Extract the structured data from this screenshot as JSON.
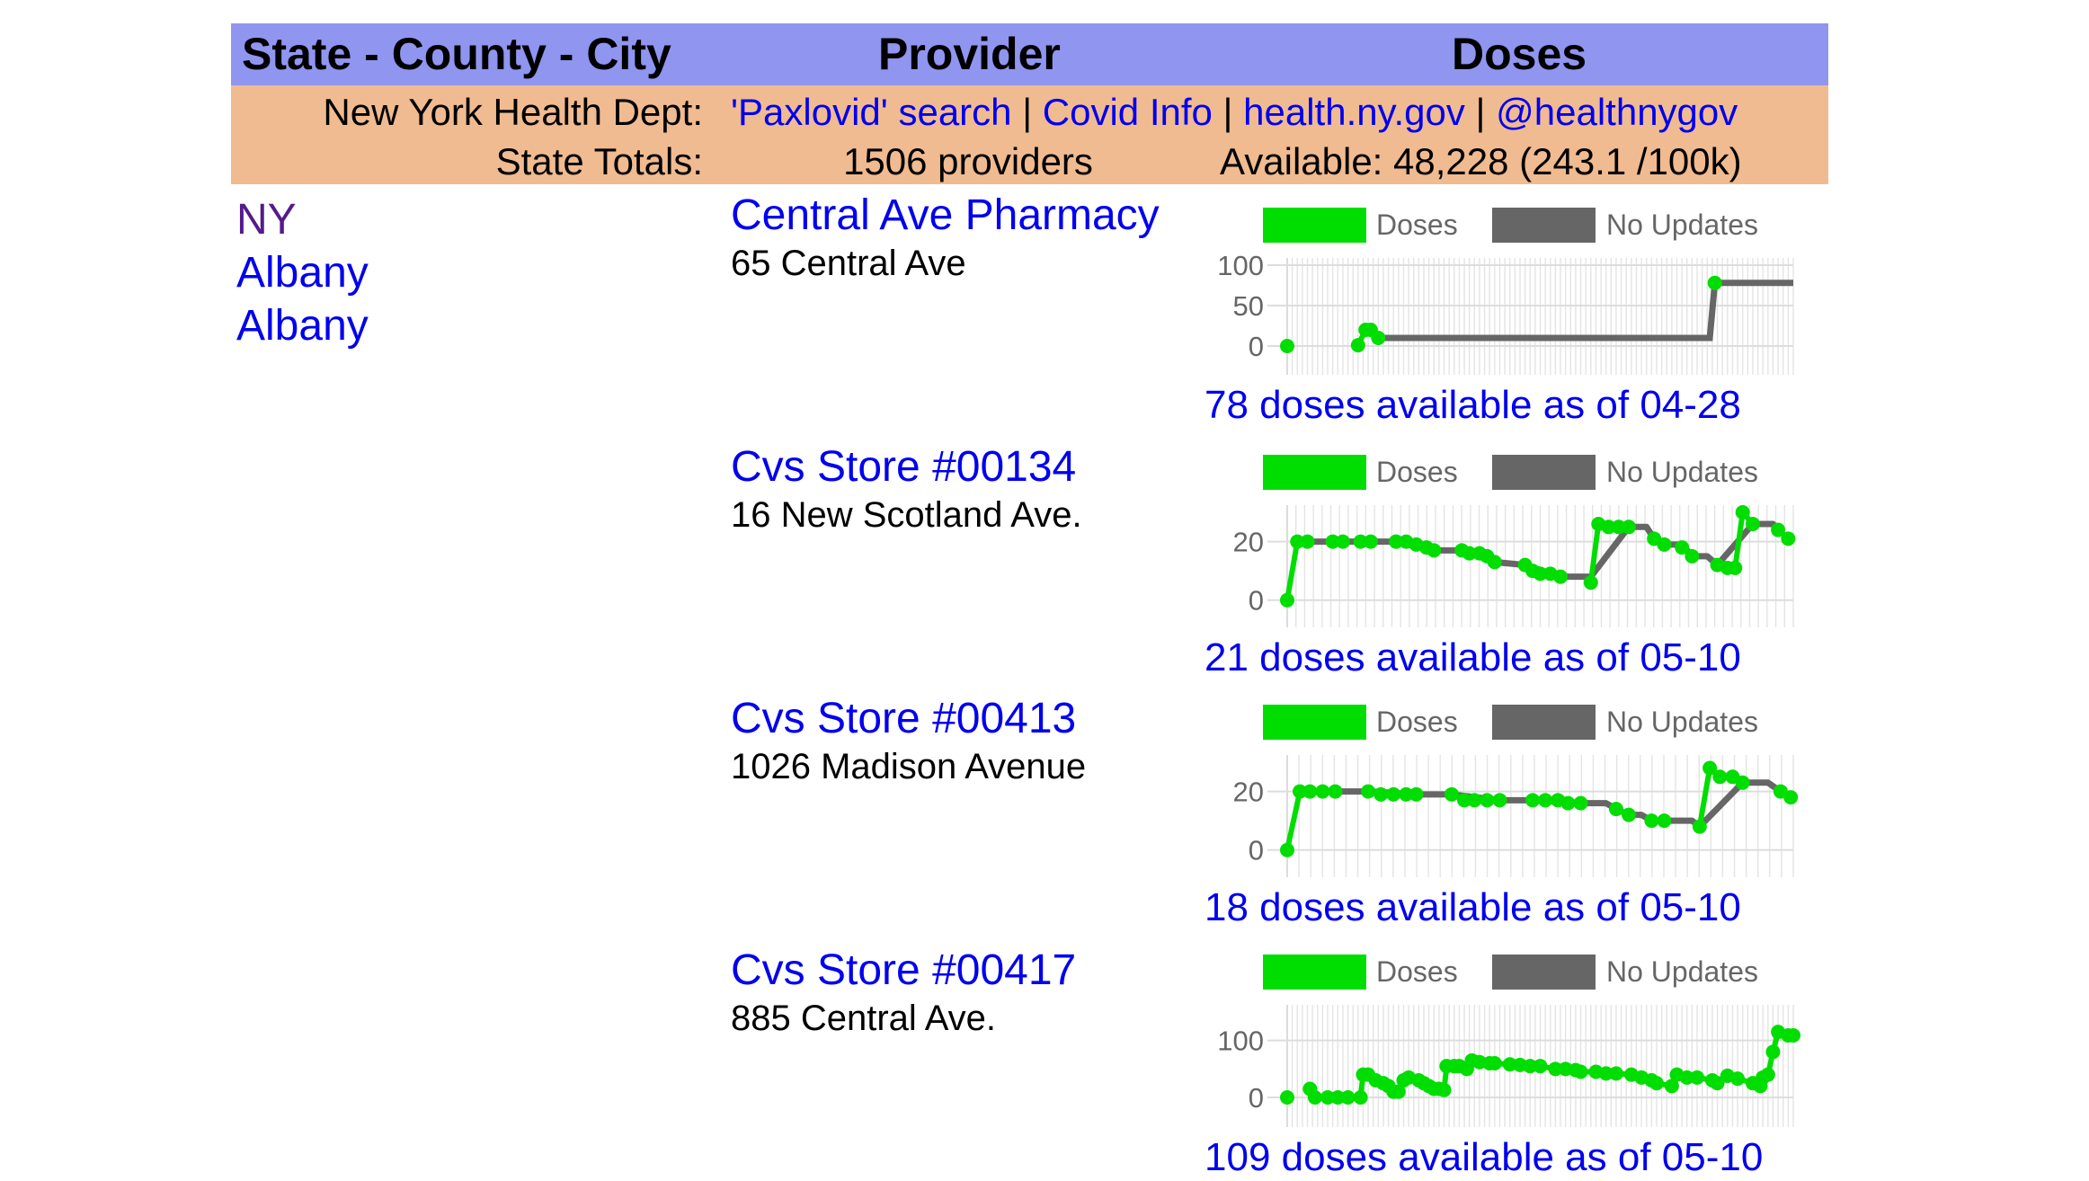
{
  "header": {
    "col_location": "State - County - City",
    "col_provider": "Provider",
    "col_doses": "Doses"
  },
  "info": {
    "dept_label": "New York Health Dept:",
    "links": [
      {
        "label": "'Paxlovid' search"
      },
      {
        "label": "Covid Info"
      },
      {
        "label": "health.ny.gov"
      },
      {
        "label": "@healthnygov"
      }
    ],
    "separator": " | ",
    "totals_label": "State Totals:",
    "providers_total": "1506 providers",
    "available_total": "Available: 48,228 (243.1 /100k)"
  },
  "location": {
    "state": "NY",
    "county": "Albany",
    "city": "Albany"
  },
  "colors": {
    "header_bg": "#9095F0",
    "info_bg": "#F0BB90",
    "link": "#0000EE",
    "visited_link": "#551A8B",
    "doses_series": "#00DD00",
    "no_updates_series": "#666666",
    "grid": "#DDDDDD"
  },
  "legend": {
    "doses_label": "Doses",
    "no_updates_label": "No Updates"
  },
  "providers": [
    {
      "name": "Central Ave Pharmacy",
      "address": "65 Central Ave",
      "caption": "78 doses available as of 04-28"
    },
    {
      "name": "Cvs Store #00134",
      "address": "16 New Scotland Ave.",
      "caption": "21 doses available as of 05-10"
    },
    {
      "name": "Cvs Store #00413",
      "address": "1026 Madison Avenue",
      "caption": "18 doses available as of 05-10"
    },
    {
      "name": "Cvs Store #00417",
      "address": "885 Central Ave.",
      "caption": "109 doses available as of 05-10"
    }
  ],
  "chart_data": [
    {
      "type": "line",
      "title": "Central Ave Pharmacy",
      "legend": [
        "Doses",
        "No Updates"
      ],
      "yticks": [
        0,
        50,
        100
      ],
      "ylim": [
        -20,
        100
      ],
      "grid": true,
      "vlines": 100,
      "series": [
        {
          "name": "Doses",
          "x": [
            0,
            0.14,
            0.155,
            0.165,
            0.18,
            0.84
          ],
          "values": [
            0,
            1,
            20,
            20,
            10,
            78
          ]
        },
        {
          "name": "No Updates",
          "x": [
            0.18,
            0.835,
            0.845,
            1.0
          ],
          "values": [
            10,
            10,
            78,
            78
          ]
        }
      ],
      "points": [
        [
          0,
          0
        ],
        [
          0.14,
          1
        ],
        [
          0.155,
          20
        ],
        [
          0.165,
          20
        ],
        [
          0.18,
          10
        ],
        [
          0.845,
          78
        ]
      ],
      "doses_segments": [
        [
          [
            0.14,
            1
          ],
          [
            0.155,
            20
          ],
          [
            0.165,
            20
          ],
          [
            0.18,
            10
          ]
        ]
      ]
    },
    {
      "type": "line",
      "title": "Cvs Store #00134",
      "legend": [
        "Doses",
        "No Updates"
      ],
      "yticks": [
        0,
        20
      ],
      "ylim": [
        -5,
        30
      ],
      "grid": true,
      "vlines": 58,
      "points": [
        [
          0,
          0
        ],
        [
          0.02,
          20
        ],
        [
          0.04,
          20
        ],
        [
          0.09,
          20
        ],
        [
          0.11,
          20
        ],
        [
          0.145,
          20
        ],
        [
          0.165,
          20
        ],
        [
          0.215,
          20
        ],
        [
          0.235,
          20
        ],
        [
          0.255,
          19
        ],
        [
          0.275,
          18
        ],
        [
          0.29,
          17
        ],
        [
          0.345,
          17
        ],
        [
          0.36,
          16
        ],
        [
          0.38,
          16
        ],
        [
          0.395,
          15
        ],
        [
          0.41,
          13
        ],
        [
          0.47,
          12
        ],
        [
          0.485,
          10
        ],
        [
          0.5,
          9
        ],
        [
          0.52,
          9
        ],
        [
          0.54,
          8
        ],
        [
          0.6,
          6
        ],
        [
          0.615,
          26
        ],
        [
          0.635,
          25
        ],
        [
          0.655,
          25
        ],
        [
          0.675,
          25
        ],
        [
          0.725,
          21
        ],
        [
          0.745,
          19
        ],
        [
          0.78,
          18
        ],
        [
          0.8,
          15
        ],
        [
          0.85,
          12
        ],
        [
          0.87,
          11
        ],
        [
          0.885,
          11
        ],
        [
          0.9,
          30
        ],
        [
          0.92,
          26
        ],
        [
          0.97,
          24
        ],
        [
          0.99,
          21
        ]
      ],
      "doses_segments": [
        [
          [
            0,
            0
          ],
          [
            0.02,
            20
          ],
          [
            0.04,
            20
          ]
        ],
        [
          [
            0.09,
            20
          ],
          [
            0.11,
            20
          ]
        ],
        [
          [
            0.145,
            20
          ],
          [
            0.165,
            20
          ]
        ],
        [
          [
            0.215,
            20
          ],
          [
            0.235,
            20
          ],
          [
            0.255,
            19
          ],
          [
            0.275,
            18
          ],
          [
            0.29,
            17
          ]
        ],
        [
          [
            0.345,
            17
          ],
          [
            0.36,
            16
          ],
          [
            0.38,
            16
          ],
          [
            0.395,
            15
          ],
          [
            0.41,
            13
          ]
        ],
        [
          [
            0.47,
            12
          ],
          [
            0.485,
            10
          ],
          [
            0.5,
            9
          ],
          [
            0.52,
            9
          ],
          [
            0.54,
            8
          ]
        ],
        [
          [
            0.6,
            6
          ],
          [
            0.615,
            26
          ],
          [
            0.635,
            25
          ],
          [
            0.655,
            25
          ],
          [
            0.675,
            25
          ]
        ],
        [
          [
            0.725,
            21
          ],
          [
            0.745,
            19
          ]
        ],
        [
          [
            0.78,
            18
          ],
          [
            0.8,
            15
          ]
        ],
        [
          [
            0.85,
            12
          ],
          [
            0.87,
            11
          ],
          [
            0.885,
            11
          ],
          [
            0.9,
            30
          ],
          [
            0.92,
            26
          ]
        ],
        [
          [
            0.97,
            24
          ],
          [
            0.99,
            21
          ]
        ]
      ],
      "gray_path": [
        [
          0.04,
          20
        ],
        [
          0.09,
          20
        ],
        [
          0.11,
          20
        ],
        [
          0.145,
          20
        ],
        [
          0.165,
          20
        ],
        [
          0.215,
          20
        ],
        [
          0.29,
          17
        ],
        [
          0.345,
          17
        ],
        [
          0.41,
          13
        ],
        [
          0.47,
          12
        ],
        [
          0.54,
          8
        ],
        [
          0.6,
          8
        ],
        [
          0.675,
          25
        ],
        [
          0.71,
          25
        ],
        [
          0.725,
          21
        ],
        [
          0.745,
          19
        ],
        [
          0.78,
          19
        ],
        [
          0.8,
          15
        ],
        [
          0.83,
          15
        ],
        [
          0.85,
          12
        ],
        [
          0.92,
          26
        ],
        [
          0.96,
          26
        ],
        [
          0.97,
          24
        ]
      ]
    },
    {
      "type": "line",
      "title": "Cvs Store #00413",
      "legend": [
        "Doses",
        "No Updates"
      ],
      "yticks": [
        0,
        20
      ],
      "ylim": [
        -5,
        30
      ],
      "grid": true,
      "vlines": 43,
      "points": [
        [
          0,
          0
        ],
        [
          0.025,
          20
        ],
        [
          0.045,
          20
        ],
        [
          0.07,
          20
        ],
        [
          0.095,
          20
        ],
        [
          0.16,
          20
        ],
        [
          0.185,
          19
        ],
        [
          0.21,
          19
        ],
        [
          0.235,
          19
        ],
        [
          0.255,
          19
        ],
        [
          0.325,
          19
        ],
        [
          0.35,
          17
        ],
        [
          0.37,
          17
        ],
        [
          0.395,
          17
        ],
        [
          0.42,
          17
        ],
        [
          0.485,
          17
        ],
        [
          0.51,
          17
        ],
        [
          0.535,
          17
        ],
        [
          0.555,
          16
        ],
        [
          0.58,
          16
        ],
        [
          0.65,
          14
        ],
        [
          0.675,
          12
        ],
        [
          0.72,
          10
        ],
        [
          0.745,
          10
        ],
        [
          0.815,
          8
        ],
        [
          0.835,
          28
        ],
        [
          0.855,
          25
        ],
        [
          0.88,
          25
        ],
        [
          0.9,
          23
        ],
        [
          0.975,
          20
        ],
        [
          0.995,
          18
        ]
      ],
      "doses_segments": [
        [
          [
            0,
            0
          ],
          [
            0.025,
            20
          ],
          [
            0.045,
            20
          ],
          [
            0.07,
            20
          ],
          [
            0.095,
            20
          ]
        ],
        [
          [
            0.16,
            20
          ],
          [
            0.185,
            19
          ],
          [
            0.21,
            19
          ],
          [
            0.235,
            19
          ],
          [
            0.255,
            19
          ]
        ],
        [
          [
            0.325,
            19
          ],
          [
            0.35,
            17
          ],
          [
            0.37,
            17
          ],
          [
            0.395,
            17
          ],
          [
            0.42,
            17
          ]
        ],
        [
          [
            0.485,
            17
          ],
          [
            0.51,
            17
          ],
          [
            0.535,
            17
          ],
          [
            0.555,
            16
          ],
          [
            0.58,
            16
          ]
        ],
        [
          [
            0.65,
            14
          ],
          [
            0.675,
            12
          ]
        ],
        [
          [
            0.72,
            10
          ],
          [
            0.745,
            10
          ]
        ],
        [
          [
            0.815,
            8
          ],
          [
            0.835,
            28
          ],
          [
            0.855,
            25
          ],
          [
            0.88,
            25
          ],
          [
            0.9,
            23
          ]
        ],
        [
          [
            0.975,
            20
          ],
          [
            0.995,
            18
          ]
        ]
      ],
      "gray_path": [
        [
          0.095,
          20
        ],
        [
          0.16,
          20
        ],
        [
          0.255,
          19
        ],
        [
          0.325,
          19
        ],
        [
          0.42,
          17
        ],
        [
          0.485,
          17
        ],
        [
          0.58,
          16
        ],
        [
          0.63,
          16
        ],
        [
          0.65,
          14
        ],
        [
          0.675,
          12
        ],
        [
          0.7,
          12
        ],
        [
          0.72,
          10
        ],
        [
          0.745,
          10
        ],
        [
          0.8,
          10
        ],
        [
          0.815,
          8
        ],
        [
          0.9,
          23
        ],
        [
          0.95,
          23
        ],
        [
          0.975,
          20
        ]
      ]
    },
    {
      "type": "line",
      "title": "Cvs Store #00417",
      "legend": [
        "Doses",
        "No Updates"
      ],
      "yticks": [
        0,
        100
      ],
      "ylim": [
        -30,
        150
      ],
      "grid": true,
      "vlines": 100,
      "points": [
        [
          0,
          0
        ],
        [
          0.045,
          15
        ],
        [
          0.055,
          0
        ],
        [
          0.08,
          0
        ],
        [
          0.1,
          0
        ],
        [
          0.12,
          0
        ],
        [
          0.145,
          0
        ],
        [
          0.15,
          40
        ],
        [
          0.16,
          40
        ],
        [
          0.175,
          30
        ],
        [
          0.19,
          25
        ],
        [
          0.2,
          20
        ],
        [
          0.21,
          10
        ],
        [
          0.22,
          10
        ],
        [
          0.23,
          30
        ],
        [
          0.24,
          35
        ],
        [
          0.26,
          30
        ],
        [
          0.27,
          25
        ],
        [
          0.28,
          20
        ],
        [
          0.29,
          15
        ],
        [
          0.3,
          15
        ],
        [
          0.31,
          13
        ],
        [
          0.315,
          55
        ],
        [
          0.33,
          55
        ],
        [
          0.34,
          55
        ],
        [
          0.355,
          50
        ],
        [
          0.365,
          65
        ],
        [
          0.38,
          62
        ],
        [
          0.4,
          60
        ],
        [
          0.41,
          60
        ],
        [
          0.44,
          58
        ],
        [
          0.46,
          57
        ],
        [
          0.48,
          55
        ],
        [
          0.5,
          55
        ],
        [
          0.53,
          50
        ],
        [
          0.55,
          50
        ],
        [
          0.57,
          48
        ],
        [
          0.58,
          45
        ],
        [
          0.61,
          45
        ],
        [
          0.63,
          42
        ],
        [
          0.65,
          42
        ],
        [
          0.68,
          40
        ],
        [
          0.7,
          35
        ],
        [
          0.72,
          30
        ],
        [
          0.73,
          25
        ],
        [
          0.76,
          20
        ],
        [
          0.77,
          40
        ],
        [
          0.79,
          35
        ],
        [
          0.81,
          35
        ],
        [
          0.84,
          30
        ],
        [
          0.85,
          25
        ],
        [
          0.87,
          38
        ],
        [
          0.89,
          33
        ],
        [
          0.92,
          25
        ],
        [
          0.935,
          20
        ],
        [
          0.94,
          35
        ],
        [
          0.95,
          40
        ],
        [
          0.96,
          80
        ],
        [
          0.97,
          115
        ],
        [
          0.99,
          109
        ],
        [
          1.0,
          109
        ]
      ]
    }
  ]
}
